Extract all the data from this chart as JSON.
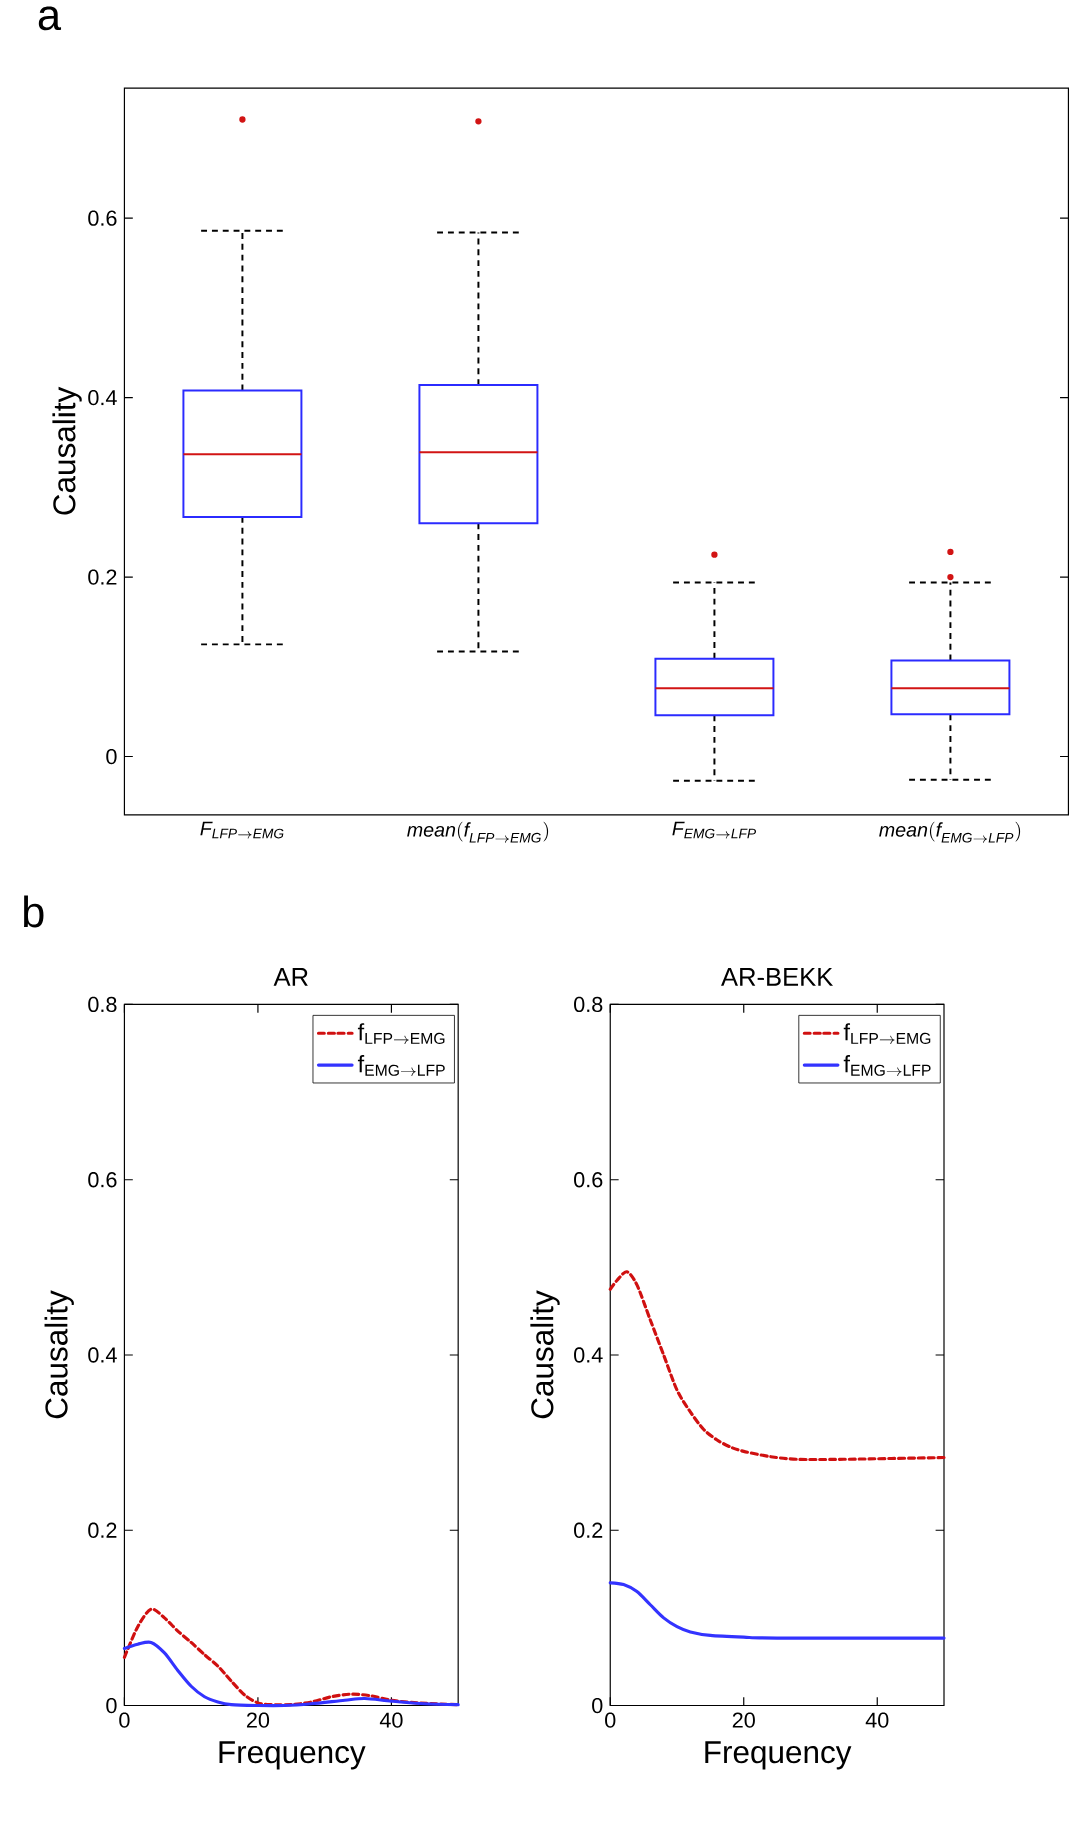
{
  "chart_data": [
    {
      "type": "box",
      "annotations": [
        "a"
      ],
      "ylabel": "Causality",
      "categories": [
        "\\mathit{F}_{\\mathit{LFP}\\rightarrow \\mathit{EMG}}",
        "\\mathit{mean(f}_{\\mathit{LFP}\\rightarrow \\mathit{EMG}}\\mathit{)}",
        "\\mathit{F}_{\\mathit{EMG}\\rightarrow \\mathit{LFP}}",
        "\\mathit{mean(f}_{\\mathit{EMG}\\rightarrow \\mathit{LFP}}\\mathit{)}"
      ],
      "ylim": [
        -0.065,
        0.745
      ],
      "yticks": [
        0,
        0.2,
        0.4,
        0.6
      ],
      "grid": false,
      "series": [
        {
          "color": "#2b2bff",
          "boxes": [
            {
              "low": 0.125,
              "q1": 0.267,
              "median": 0.337,
              "q3": 0.408,
              "high": 0.586,
              "outliers": [
                0.71
              ]
            },
            {
              "low": 0.117,
              "q1": 0.26,
              "median": 0.339,
              "q3": 0.414,
              "high": 0.584,
              "outliers": [
                0.708
              ]
            },
            {
              "low": -0.027,
              "q1": 0.046,
              "median": 0.076,
              "q3": 0.109,
              "high": 0.194,
              "outliers": [
                0.225
              ]
            },
            {
              "low": -0.026,
              "q1": 0.047,
              "median": 0.076,
              "q3": 0.107,
              "high": 0.194,
              "outliers": [
                0.228,
                0.2
              ]
            }
          ]
        }
      ]
    },
    {
      "type": "line",
      "annotations": [
        "b"
      ],
      "title": "AR",
      "xlabel": "Frequency",
      "ylabel": "Causality",
      "xlim": [
        0,
        50
      ],
      "ylim": [
        0,
        0.8
      ],
      "xticks": [
        0,
        20,
        40
      ],
      "yticks": [
        0,
        0.2,
        0.4,
        0.6,
        0.8
      ],
      "grid": false,
      "legend": "top right",
      "series": [
        {
          "name": "\\mathrm{f}_{\\mathrm{LFP}\\rightarrow \\mathrm{EMG}}",
          "color": "#d01010",
          "line_style": "dashed",
          "x": [
            0,
            2,
            4,
            6,
            8,
            10,
            12,
            14,
            16,
            18,
            20,
            22,
            25,
            28,
            31,
            34,
            37,
            40,
            44,
            50
          ],
          "values": [
            0.055,
            0.09,
            0.11,
            0.1,
            0.085,
            0.072,
            0.058,
            0.045,
            0.028,
            0.012,
            0.003,
            0.001,
            0.001,
            0.004,
            0.01,
            0.013,
            0.011,
            0.006,
            0.003,
            0.001
          ]
        },
        {
          "name": "\\mathrm{f}_{\\mathrm{EMG}\\rightarrow \\mathrm{LFP}}",
          "color": "#3333ff",
          "line_style": "solid",
          "x": [
            0,
            2,
            4,
            6,
            8,
            10,
            12,
            14,
            16,
            20,
            24,
            28,
            33,
            36,
            40,
            45,
            50
          ],
          "values": [
            0.065,
            0.07,
            0.072,
            0.06,
            0.04,
            0.022,
            0.01,
            0.004,
            0.001,
            0,
            0,
            0.002,
            0.006,
            0.008,
            0.005,
            0.002,
            0.001
          ]
        }
      ]
    },
    {
      "type": "line",
      "title": "AR-BEKK",
      "xlabel": "Frequency",
      "ylabel": "Causality",
      "xlim": [
        0,
        50
      ],
      "ylim": [
        0,
        0.8
      ],
      "xticks": [
        0,
        20,
        40
      ],
      "yticks": [
        0,
        0.2,
        0.4,
        0.6,
        0.8
      ],
      "grid": false,
      "legend": "top right",
      "series": [
        {
          "name": "\\mathrm{f}_{\\mathrm{LFP}\\rightarrow \\mathrm{EMG}}",
          "color": "#d01010",
          "line_style": "dashed",
          "x": [
            0,
            1,
            2.5,
            4,
            6,
            8,
            10,
            12,
            14,
            16,
            18,
            20,
            24,
            28,
            35,
            50
          ],
          "values": [
            0.475,
            0.485,
            0.495,
            0.48,
            0.44,
            0.4,
            0.36,
            0.335,
            0.315,
            0.303,
            0.295,
            0.29,
            0.284,
            0.281,
            0.281,
            0.283
          ]
        },
        {
          "name": "\\mathrm{f}_{\\mathrm{EMG}\\rightarrow \\mathrm{LFP}}",
          "color": "#3333ff",
          "line_style": "solid",
          "x": [
            0,
            2,
            4,
            6,
            8,
            10,
            12,
            15,
            20,
            25,
            50
          ],
          "values": [
            0.14,
            0.138,
            0.13,
            0.115,
            0.1,
            0.09,
            0.084,
            0.08,
            0.078,
            0.077,
            0.077
          ]
        }
      ]
    }
  ]
}
